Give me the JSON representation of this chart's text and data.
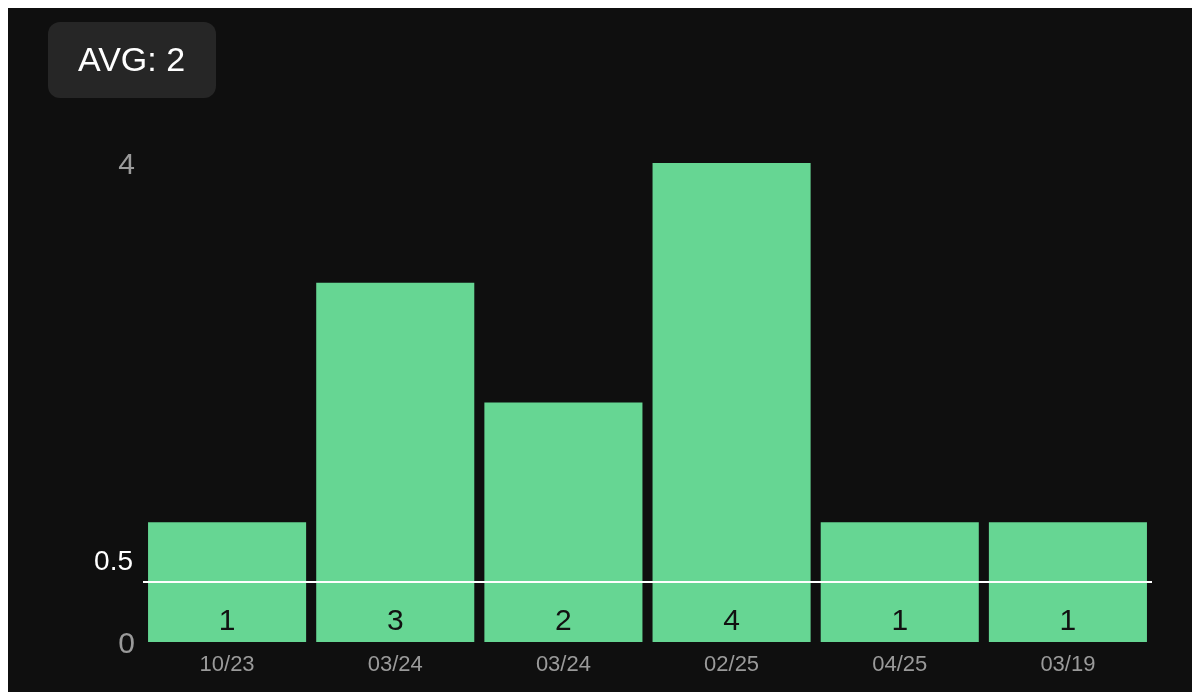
{
  "chart_data": {
    "type": "bar",
    "annotations": [
      "AVG: 2"
    ],
    "categories": [
      "10/23",
      "03/24",
      "03/24",
      "02/25",
      "04/25",
      "03/19"
    ],
    "values": [
      1,
      3,
      2,
      4,
      1,
      1
    ],
    "color": "#66d693",
    "data_labels": true,
    "ylim": [
      0,
      4
    ],
    "yticks": [
      0,
      4
    ],
    "ref_lines": [
      {
        "axis": "y",
        "value": 0.5,
        "label": "0.5",
        "color": "#ffffff"
      }
    ]
  }
}
